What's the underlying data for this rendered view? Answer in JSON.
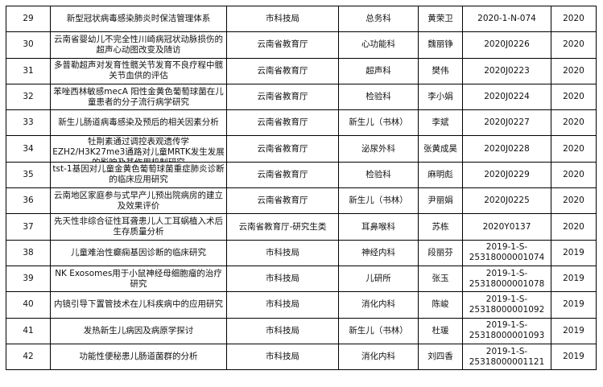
{
  "rows": [
    {
      "no": "29",
      "title": "新型冠状病毒感染肺炎时保洁管理体系",
      "source": "市科技局",
      "dept": "总务科",
      "leader": "黄荣卫",
      "code": "2020-1-N-074",
      "year": "2020"
    },
    {
      "no": "30",
      "title": "云南省婴幼儿不完全性川崎病冠状动脉损伤的超声心动图改变及随访",
      "source": "云南省教育厅",
      "dept": "心功能科",
      "leader": "魏丽铮",
      "code": "2020J0226",
      "year": "2020"
    },
    {
      "no": "31",
      "title": "多普勒超声对发育性髋关节发育不良疗程中髋关节血供的评估",
      "source": "云南省教育厅",
      "dept": "超声科",
      "leader": "樊伟",
      "code": "2020J0223",
      "year": "2020"
    },
    {
      "no": "32",
      "title": "苯唑西林敏感mecA 阳性金黄色葡萄球菌在儿童患者的分子流行病学研究",
      "source": "云南省教育厅",
      "dept": "检验科",
      "leader": "李小娟",
      "code": "2020J0224",
      "year": "2020"
    },
    {
      "no": "33",
      "title": "新生儿肠道病毒感染及预后的相关因素分析",
      "source": "云南省教育厅",
      "dept": "新生儿（书林）",
      "leader": "李斌",
      "code": "2020J0227",
      "year": "2020"
    },
    {
      "no": "34",
      "title": "牡荆素通过调控表观遗传学EZH2/H3K27me3通路对儿童MRTK发生发展的影响及其作用机制研究",
      "source": "云南省教育厅",
      "dept": "泌尿外科",
      "leader": "张黄成昊",
      "code": "2020J0228",
      "year": "2020"
    },
    {
      "no": "35",
      "title": "tst-1基因对儿童金黄色葡萄球菌重症肺炎诊断的临床应用研究",
      "source": "云南省教育厅",
      "dept": "检验科",
      "leader": "麻明彪",
      "code": "2020J0229",
      "year": "2020"
    },
    {
      "no": "36",
      "title": "云南地区家庭参与式早产儿预出院病房的建立及效果评价",
      "source": "云南省教育厅",
      "dept": "新生儿（书林）",
      "leader": "尹丽娟",
      "code": "2020J0225",
      "year": "2020"
    },
    {
      "no": "37",
      "title": "先天性非综合征性耳聋患儿人工耳蜗植入术后生存质量分析",
      "source": "云南省教育厅-研究生类",
      "dept": "耳鼻喉科",
      "leader": "苏栋",
      "code": "2020Y0137",
      "year": "2020"
    },
    {
      "no": "38",
      "title": "儿童难治性癫痫基因诊断的临床研究",
      "source": "市科技局",
      "dept": "神经内科",
      "leader": "段丽芬",
      "code": "2019-1-S-25318000001074",
      "year": "2019"
    },
    {
      "no": "39",
      "title": "NK Exosomes用于小鼠神经母细胞瘤的治疗研究",
      "source": "市科技局",
      "dept": "儿研所",
      "leader": "张玉",
      "code": "2019-1-S-25318000001078",
      "year": "2019"
    },
    {
      "no": "40",
      "title": "内镜引导下置管技术在儿科疾病中的应用研究",
      "source": "市科技局",
      "dept": "消化内科",
      "leader": "陈峻",
      "code": "2019-1-S-25318000001092",
      "year": "2019"
    },
    {
      "no": "41",
      "title": "发热新生儿病因及病原学探讨",
      "source": "市科技局",
      "dept": "新生儿（书林）",
      "leader": "杜瑗",
      "code": "2019-1-S-25318000001093",
      "year": "2019"
    },
    {
      "no": "42",
      "title": "功能性便秘患儿肠道菌群的分析",
      "source": "市科技局",
      "dept": "消化内科",
      "leader": "刘四香",
      "code": "2019-1-S-25318000001121",
      "year": "2019"
    }
  ]
}
